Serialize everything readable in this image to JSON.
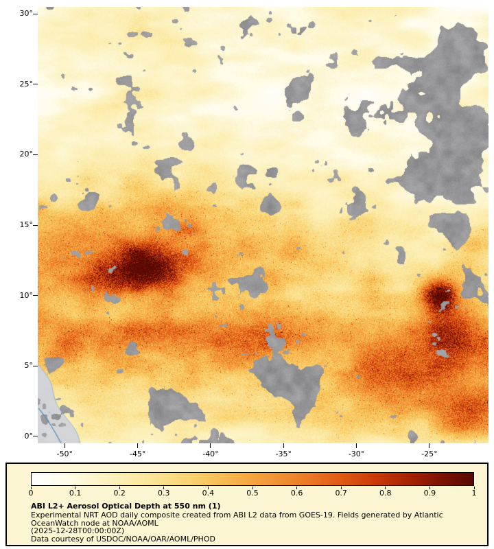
{
  "map": {
    "lat_range": [
      -0.5,
      30.5
    ],
    "lon_range": [
      -51.85,
      -20.95
    ],
    "lat_ticks": [
      {
        "lat": 30,
        "label": "30°"
      },
      {
        "lat": 25,
        "label": "25°"
      },
      {
        "lat": 20,
        "label": "20°"
      },
      {
        "lat": 15,
        "label": "15°"
      },
      {
        "lat": 10,
        "label": "10°"
      },
      {
        "lat": 5,
        "label": "5°"
      },
      {
        "lat": 0,
        "label": "0°"
      }
    ],
    "lon_ticks": [
      {
        "lon": -50,
        "label": "-50°"
      },
      {
        "lon": -45,
        "label": "-45°"
      },
      {
        "lon": -40,
        "label": "-40°"
      },
      {
        "lon": -35,
        "label": "-35°"
      },
      {
        "lon": -30,
        "label": "-30°"
      },
      {
        "lon": -25,
        "label": "-25°"
      }
    ]
  },
  "legend": {
    "title": "ABI L2+ Aerosol Optical Depth at 550 nm (1)",
    "lines": [
      "Experimental NRT AOD daily composite created from ABI L2 data from GOES-19. Fields generated by Atlantic",
      "OceanWatch node at NOAA/AOML",
      "(2025-12-28T00:00:00Z)",
      "Data courtesy of USDOC/NOAA/OAR/AOML/PHOD"
    ],
    "ticks": [
      {
        "value": 0.0,
        "label": "0"
      },
      {
        "value": 0.1,
        "label": "0.1"
      },
      {
        "value": 0.2,
        "label": "0.2"
      },
      {
        "value": 0.3,
        "label": "0.3"
      },
      {
        "value": 0.4,
        "label": "0.4"
      },
      {
        "value": 0.5,
        "label": "0.5"
      },
      {
        "value": 0.6,
        "label": "0.6"
      },
      {
        "value": 0.7,
        "label": "0.7"
      },
      {
        "value": 0.8,
        "label": "0.8"
      },
      {
        "value": 0.9,
        "label": "0.9"
      },
      {
        "value": 1.0,
        "label": "1"
      }
    ]
  },
  "colors": {
    "page_bg": "#ffffff",
    "legend_bg": "#fdf6d3",
    "legend_border": "#000000",
    "axis_text": "#000000",
    "cloud_gray": "#919191",
    "land_gray": "#d6d9db",
    "coast_blue": "#9db7c6",
    "river_blue": "#5b8fb9",
    "colormap": [
      {
        "v": 0.0,
        "c": "#ffffff"
      },
      {
        "v": 0.08,
        "c": "#fffce9"
      },
      {
        "v": 0.15,
        "c": "#fdf4c8"
      },
      {
        "v": 0.22,
        "c": "#fcedae"
      },
      {
        "v": 0.3,
        "c": "#fbdf8d"
      },
      {
        "v": 0.38,
        "c": "#f9cd66"
      },
      {
        "v": 0.46,
        "c": "#f7b249"
      },
      {
        "v": 0.54,
        "c": "#f29737"
      },
      {
        "v": 0.62,
        "c": "#ec7b26"
      },
      {
        "v": 0.7,
        "c": "#e05a14"
      },
      {
        "v": 0.78,
        "c": "#c93a08"
      },
      {
        "v": 0.86,
        "c": "#a32104"
      },
      {
        "v": 0.93,
        "c": "#7c1203"
      },
      {
        "v": 1.0,
        "c": "#570902"
      }
    ]
  },
  "chart_data": {
    "type": "heatmap",
    "title": "ABI L2+ Aerosol Optical Depth at 550 nm (1)",
    "x_tick_labels": [
      "-50°",
      "-45°",
      "-40°",
      "-35°",
      "-30°",
      "-25°"
    ],
    "y_tick_labels": [
      "30°",
      "25°",
      "20°",
      "15°",
      "10°",
      "5°",
      "0°"
    ],
    "value_range": [
      0,
      1
    ],
    "colorbar_tick_labels": [
      "0",
      "0.1",
      "0.2",
      "0.3",
      "0.4",
      "0.5",
      "0.6",
      "0.7",
      "0.8",
      "0.9",
      "1"
    ],
    "legend_position": "bottom",
    "notes": "AOD field over the tropical North Atlantic. Background ocean values ~0.1-0.3 (pale yellow); elevated dust band ~0.4-0.8 (orange-red) between about 4N and 15N; darkest maxima ~0.8-1.0 near 12N/44-45W and near 10N/24-25W; scattered gray patches are cloud/no-data, concentrated along the eastern edge and near 4N/33W; light gray landmass (NE South America) with blue river line in the southwest corner."
  }
}
